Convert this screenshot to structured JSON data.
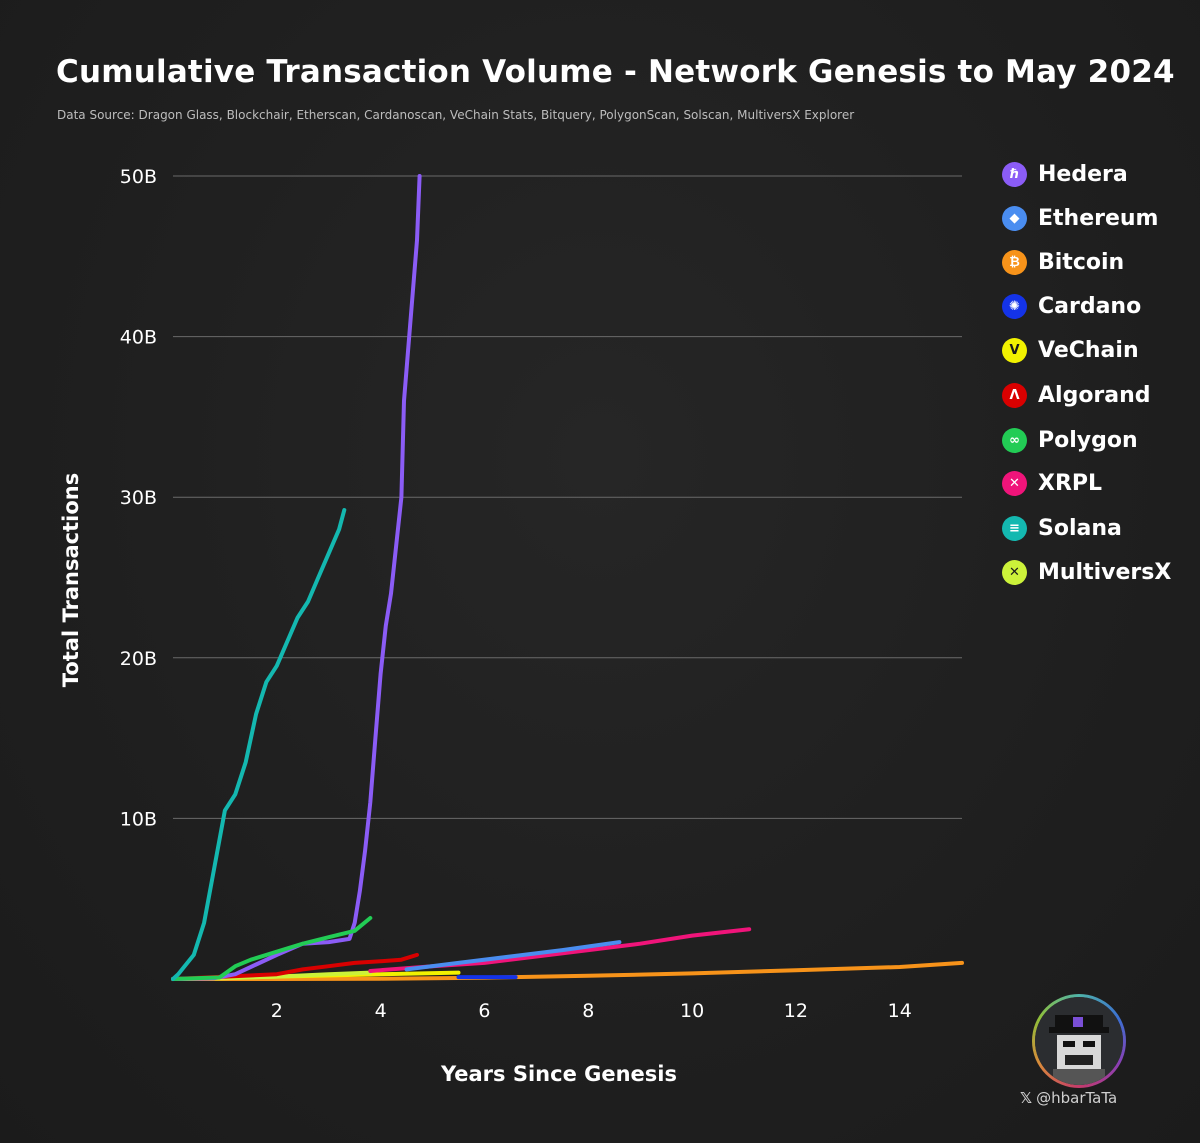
{
  "title": "Cumulative Transaction Volume - Network Genesis to May 2024",
  "subtitle": "Data Source: Dragon Glass, Blockchair, Etherscan, Cardanoscan, VeChain Stats, Bitquery, PolygonScan, Solscan, MultiversX Explorer",
  "handle": "@hbarTaTa",
  "legend": [
    {
      "label": "Hedera",
      "color": "#8b5cf6",
      "icon": "hedera-icon",
      "glyph": "ℏ"
    },
    {
      "label": "Ethereum",
      "color": "#4a8df0",
      "icon": "ethereum-icon",
      "glyph": "◆"
    },
    {
      "label": "Bitcoin",
      "color": "#f7931a",
      "icon": "bitcoin-icon",
      "glyph": "₿"
    },
    {
      "label": "Cardano",
      "color": "#1433e8",
      "icon": "cardano-icon",
      "glyph": "✺"
    },
    {
      "label": "VeChain",
      "color": "#f2f200",
      "icon": "vechain-icon",
      "glyph": "V"
    },
    {
      "label": "Algorand",
      "color": "#d90000",
      "icon": "algorand-icon",
      "glyph": "Λ"
    },
    {
      "label": "Polygon",
      "color": "#22cc55",
      "icon": "polygon-icon",
      "glyph": "∞"
    },
    {
      "label": "XRPL",
      "color": "#f0147a",
      "icon": "xrpl-icon",
      "glyph": "✕"
    },
    {
      "label": "Solana",
      "color": "#14b8b0",
      "icon": "solana-icon",
      "glyph": "≡"
    },
    {
      "label": "MultiversX",
      "color": "#ccf23a",
      "icon": "multiversx-icon",
      "glyph": "✕"
    }
  ],
  "chart_data": {
    "type": "line",
    "title": "Cumulative Transaction Volume - Network Genesis to May 2024",
    "xlabel": "Years Since Genesis",
    "ylabel": "Total Transactions",
    "xlim": [
      0,
      15.2
    ],
    "ylim": [
      0,
      50
    ],
    "x_ticks": [
      2,
      4,
      6,
      8,
      10,
      12,
      14
    ],
    "y_ticks": [
      {
        "value": 10,
        "label": "10B"
      },
      {
        "value": 20,
        "label": "20B"
      },
      {
        "value": 30,
        "label": "30B"
      },
      {
        "value": 40,
        "label": "40B"
      },
      {
        "value": 50,
        "label": "50B"
      }
    ],
    "grid": "horizontal",
    "legend_position": "right",
    "series": [
      {
        "name": "Bitcoin",
        "color": "#f7931a",
        "x": [
          0,
          2,
          4,
          6,
          8,
          10,
          12,
          14,
          15.2
        ],
        "y": [
          0.0,
          0.0,
          0.02,
          0.08,
          0.2,
          0.35,
          0.55,
          0.75,
          1.0
        ]
      },
      {
        "name": "Cardano",
        "color": "#1433e8",
        "x": [
          5.5,
          6.6
        ],
        "y": [
          0.12,
          0.12
        ]
      },
      {
        "name": "VeChain",
        "color": "#f2f200",
        "x": [
          0,
          2,
          4,
          5.5
        ],
        "y": [
          0.0,
          0.15,
          0.3,
          0.4
        ]
      },
      {
        "name": "MultiversX",
        "color": "#ccf23a",
        "x": [
          0,
          1,
          2,
          3,
          3.8
        ],
        "y": [
          0.0,
          0.05,
          0.15,
          0.3,
          0.4
        ]
      },
      {
        "name": "XRPL",
        "color": "#f0147a",
        "x": [
          3.8,
          5,
          6,
          7,
          8,
          9,
          10,
          11.1
        ],
        "y": [
          0.5,
          0.8,
          1.0,
          1.4,
          1.8,
          2.2,
          2.7,
          3.1
        ]
      },
      {
        "name": "Ethereum",
        "color": "#4a8df0",
        "x": [
          4.5,
          5.5,
          6.5,
          7.5,
          8.6
        ],
        "y": [
          0.6,
          1.0,
          1.4,
          1.8,
          2.3
        ]
      },
      {
        "name": "Algorand",
        "color": "#d90000",
        "x": [
          0,
          2,
          2.5,
          3,
          3.5,
          4,
          4.4,
          4.7
        ],
        "y": [
          0.0,
          0.3,
          0.6,
          0.8,
          1.0,
          1.1,
          1.2,
          1.5
        ]
      },
      {
        "name": "Hedera",
        "color": "#8b5cf6",
        "x": [
          0,
          0.8,
          1.2,
          1.6,
          2,
          2.5,
          3,
          3.4,
          3.5,
          3.6,
          3.7,
          3.8,
          3.9,
          4,
          4.1,
          4.2,
          4.3,
          4.4,
          4.45,
          4.5,
          4.6,
          4.65,
          4.7,
          4.75
        ],
        "y": [
          0.0,
          0.05,
          0.3,
          0.9,
          1.5,
          2.2,
          2.3,
          2.5,
          3.5,
          5.5,
          8,
          11,
          15,
          19,
          22,
          24,
          27,
          30,
          36,
          38,
          42,
          44,
          46,
          50
        ]
      },
      {
        "name": "Polygon",
        "color": "#22cc55",
        "x": [
          0,
          0.9,
          1.2,
          1.5,
          2,
          2.5,
          3,
          3.5,
          3.8
        ],
        "y": [
          0.0,
          0.1,
          0.8,
          1.2,
          1.7,
          2.2,
          2.6,
          3.0,
          3.8
        ]
      },
      {
        "name": "Solana",
        "color": "#14b8b0",
        "x": [
          0,
          0.1,
          0.2,
          0.4,
          0.6,
          0.8,
          1,
          1.2,
          1.4,
          1.5,
          1.6,
          1.8,
          2,
          2.2,
          2.4,
          2.6,
          2.8,
          3,
          3.2,
          3.3
        ],
        "y": [
          0.0,
          0.3,
          0.7,
          1.5,
          3.5,
          7,
          10.5,
          11.5,
          13.5,
          15,
          16.5,
          18.5,
          19.5,
          21,
          22.5,
          23.5,
          25,
          26.5,
          28,
          29.2
        ]
      }
    ]
  }
}
